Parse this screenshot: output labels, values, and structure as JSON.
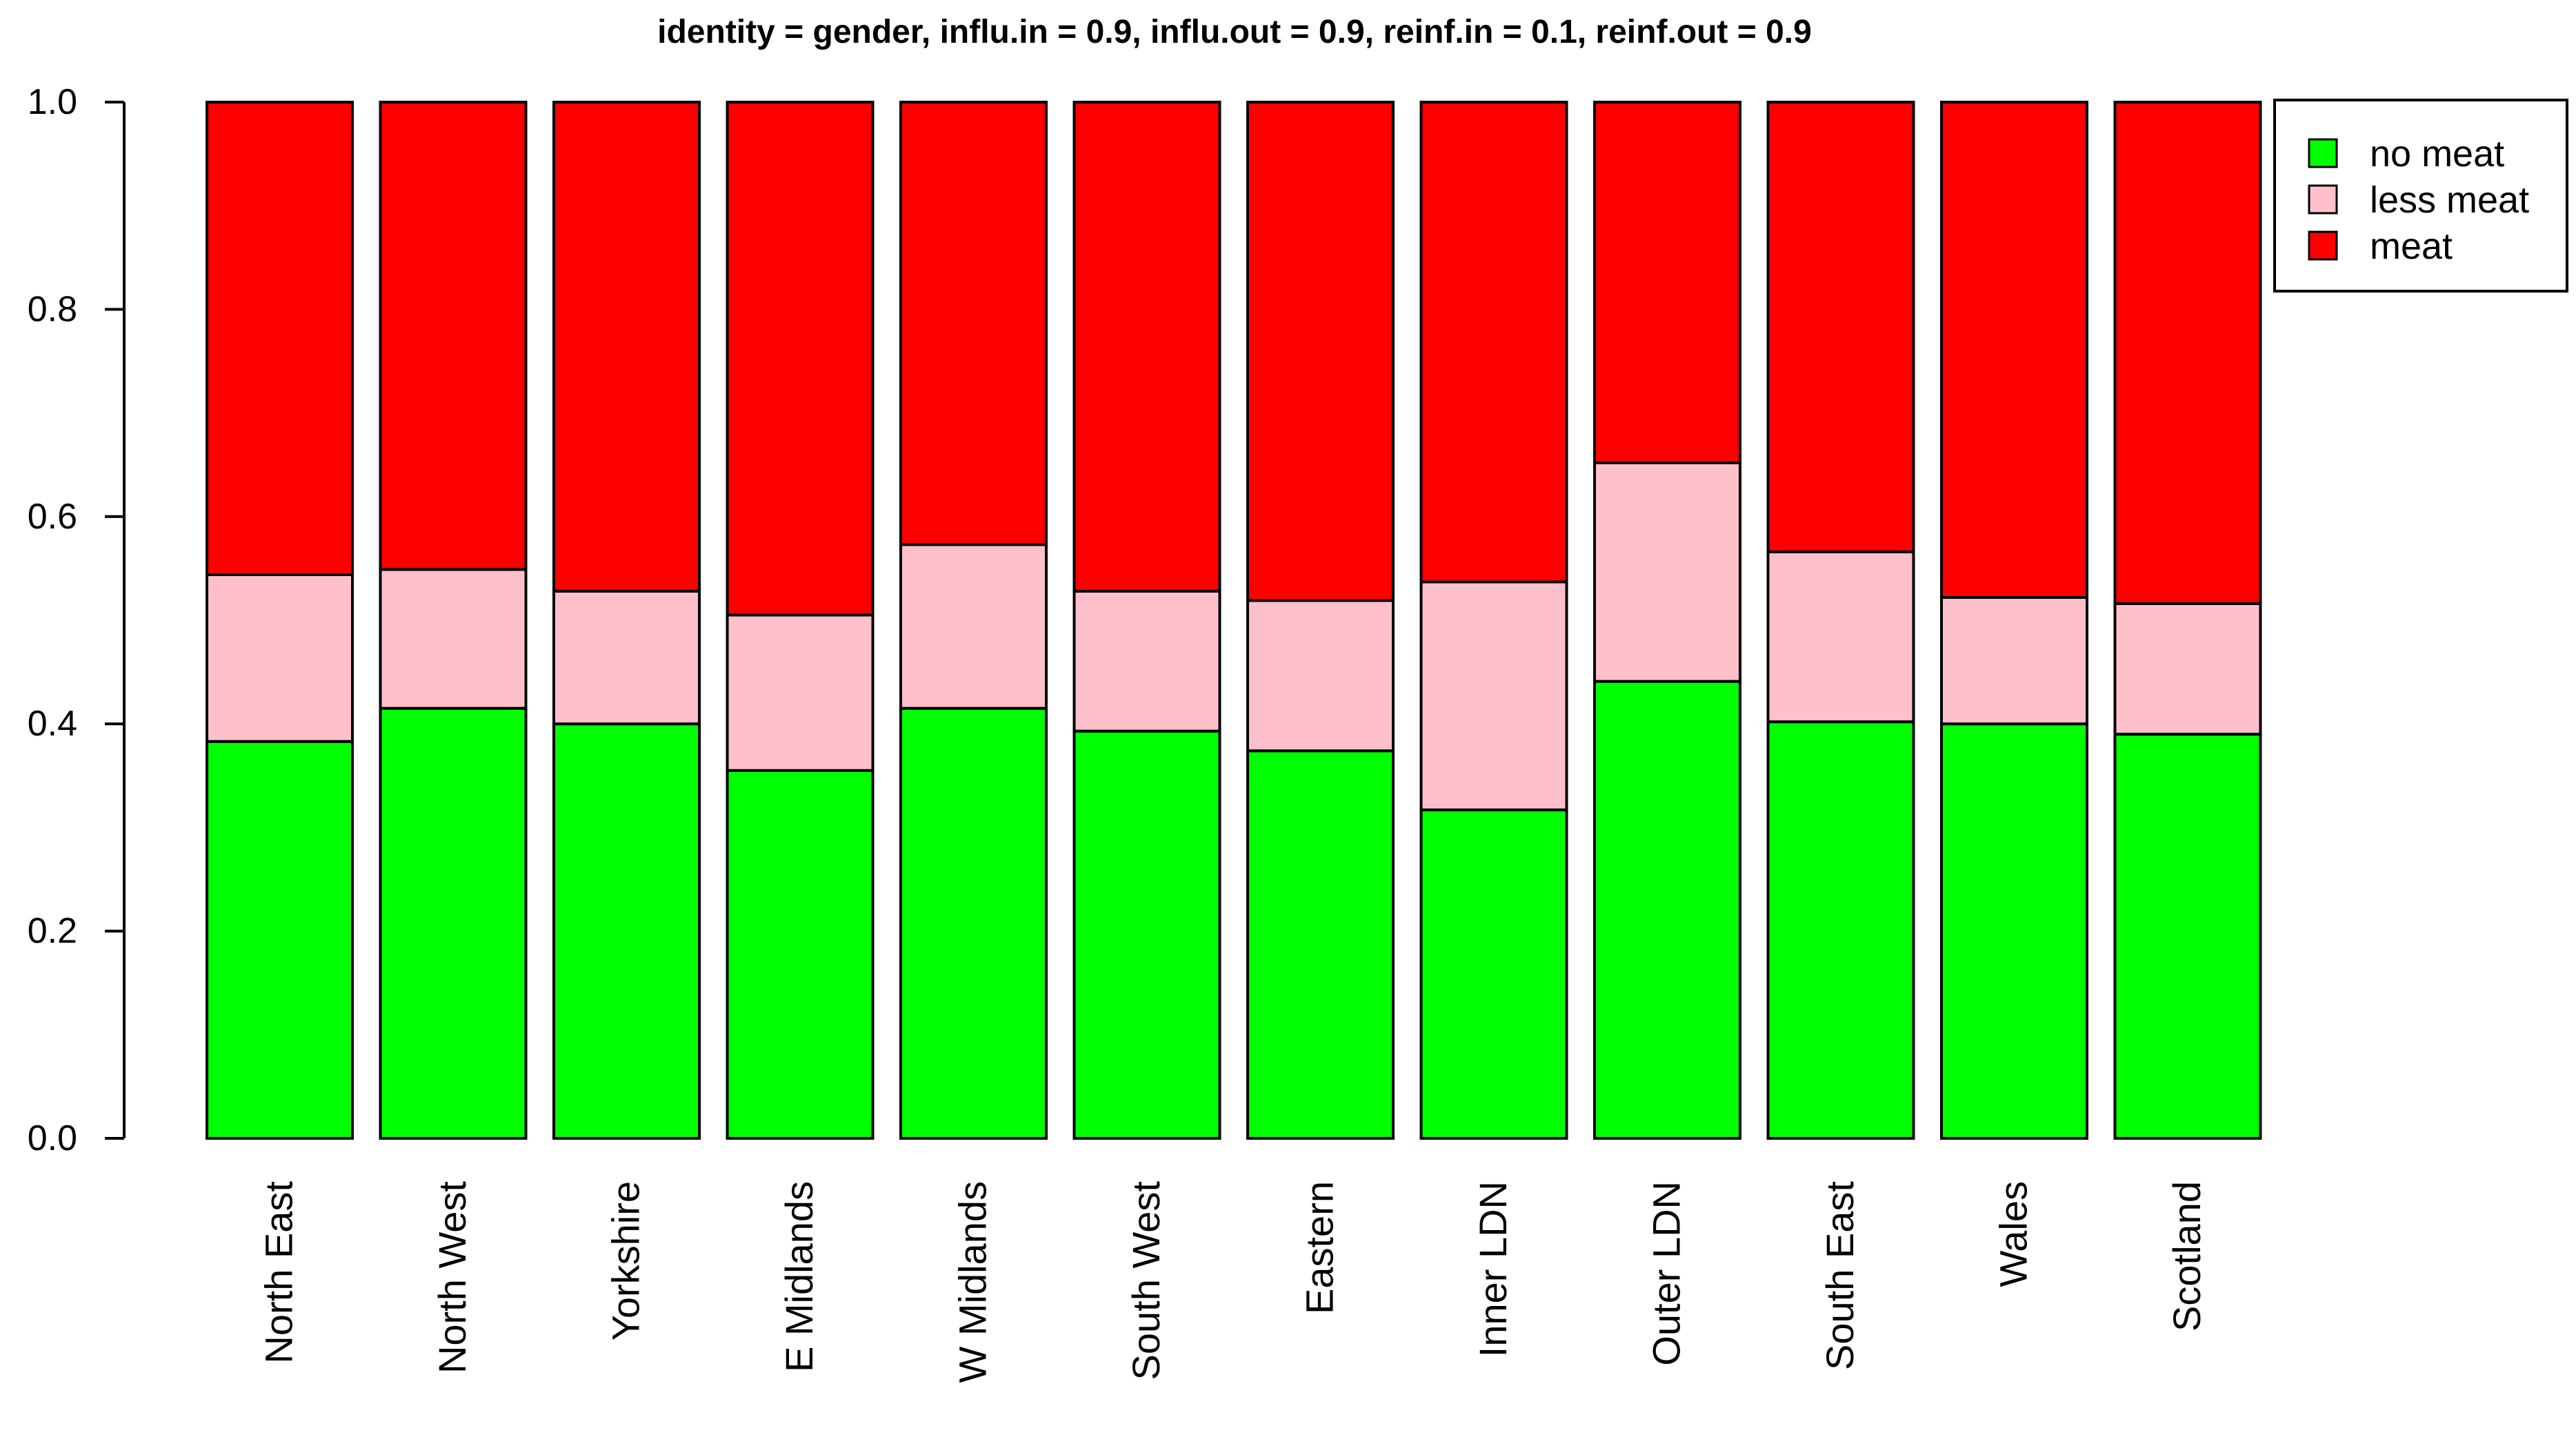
{
  "chart_data": {
    "type": "bar",
    "stacked": true,
    "title": "identity = gender, influ.in = 0.9, influ.out = 0.9, reinf.in = 0.1, reinf.out = 0.9",
    "xlabel": "",
    "ylabel": "",
    "ylim": [
      0,
      1
    ],
    "yticks": [
      "0.0",
      "0.2",
      "0.4",
      "0.6",
      "0.8",
      "1.0"
    ],
    "grid": false,
    "legend_position": "top-right",
    "categories": [
      "North East",
      "North West",
      "Yorkshire",
      "E Midlands",
      "W Midlands",
      "South West",
      "Eastern",
      "Inner LDN",
      "Outer LDN",
      "South East",
      "Wales",
      "Scotland"
    ],
    "series": [
      {
        "name": "no meat",
        "color": "#00ff00",
        "values": [
          0.383,
          0.415,
          0.4,
          0.355,
          0.415,
          0.393,
          0.374,
          0.317,
          0.441,
          0.402,
          0.4,
          0.39
        ]
      },
      {
        "name": "less meat",
        "color": "#ffc0cb",
        "values": [
          0.161,
          0.134,
          0.128,
          0.15,
          0.158,
          0.135,
          0.145,
          0.22,
          0.211,
          0.164,
          0.122,
          0.126
        ]
      },
      {
        "name": "meat",
        "color": "#ff0000",
        "values": [
          0.456,
          0.451,
          0.472,
          0.495,
          0.427,
          0.472,
          0.481,
          0.463,
          0.348,
          0.434,
          0.478,
          0.484
        ]
      }
    ]
  }
}
